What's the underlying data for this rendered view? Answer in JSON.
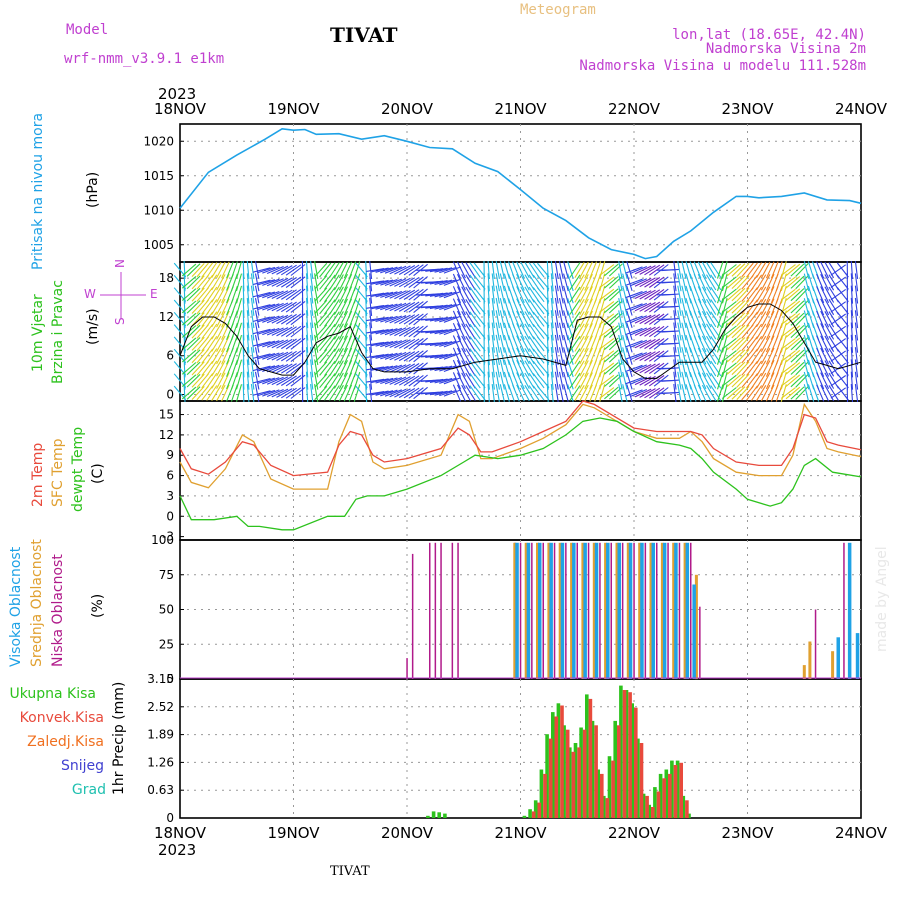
{
  "header": {
    "model_label": "Model",
    "model_name": "wrf-nmm_v3.9.1 e1km",
    "title": "TIVAT",
    "meteogram": "Meteogram",
    "lonlat": "lon,lat (18.65E, 42.4N)",
    "alt": "Nadmorska Visina 2m",
    "model_alt": "Nadmorska Visina u modelu 111.528m",
    "footer": "TIVAT",
    "credit": "made by Angel"
  },
  "time_axis": {
    "year": "2023",
    "ticks": [
      "18NOV",
      "19NOV",
      "20NOV",
      "21NOV",
      "22NOV",
      "23NOV",
      "24NOV"
    ]
  },
  "colors": {
    "pressure": "#1fa2e6",
    "t2m": "#e84a3c",
    "sfc": "#e0a030",
    "dew": "#2dc21d",
    "cloud_high": "#1fa2e6",
    "cloud_mid": "#e0a030",
    "cloud_low": "#b01a8a",
    "precip_total": "#2dc21d",
    "precip_conv": "#e84a3c",
    "precip_frz": "#f07020",
    "precip_snow": "#4040d0",
    "precip_grad": "#20c0b0",
    "violet": "#c040d0"
  },
  "panels": {
    "pressure": {
      "label1": "Pritisak na nivou mora",
      "unit": "(hPa)",
      "ticks": [
        "1020",
        "1015",
        "1010",
        "1005"
      ]
    },
    "wind": {
      "label1": "10m Vjetar",
      "label2": "Brzina i Pravac",
      "unit": "(m/s)",
      "ticks": [
        "18",
        "12",
        "6",
        "0"
      ],
      "compass_n": "N",
      "compass_s": "S",
      "compass_w": "W",
      "compass_e": "E"
    },
    "temp": {
      "label1": "2m Temp",
      "label2": "SFC Temp",
      "label3": "dewpt Temp",
      "unit": "(C)",
      "ticks": [
        "15",
        "12",
        "9",
        "6",
        "3",
        "0",
        "-3"
      ]
    },
    "cloud": {
      "label1": "Visoka Oblacnost",
      "label2": "Srednja Oblacnost",
      "label3": "Niska Oblacnost",
      "unit": "(%)",
      "ticks": [
        "100",
        "75",
        "50",
        "25",
        "0"
      ]
    },
    "precip": {
      "labels": [
        "Ukupna Kisa",
        "Konvek.Kisa",
        "Zaledj.Kisa",
        "Snijeg",
        "Grad"
      ],
      "unit": "1hr Precip (mm)",
      "ticks": [
        "3.15",
        "2.52",
        "1.89",
        "1.26",
        "0.63",
        "0"
      ]
    }
  },
  "chart_data": [
    {
      "type": "line",
      "panel": "pressure",
      "ylabel": "(hPa)",
      "ylim": [
        1002.5,
        1022.5
      ],
      "x_unit": "days since 18NOV 00Z",
      "series": [
        {
          "name": "Pritisak na nivou mora",
          "x": [
            0,
            0.25,
            0.5,
            0.75,
            0.9,
            1.0,
            1.1,
            1.2,
            1.4,
            1.6,
            1.8,
            2.0,
            2.2,
            2.4,
            2.6,
            2.8,
            3.0,
            3.2,
            3.4,
            3.6,
            3.8,
            4.0,
            4.1,
            4.2,
            4.35,
            4.5,
            4.7,
            4.9,
            5.0,
            5.1,
            5.3,
            5.5,
            5.7,
            5.9,
            6.0
          ],
          "y": [
            1010.3,
            1015.5,
            1018.0,
            1020.3,
            1021.8,
            1021.6,
            1021.7,
            1021.0,
            1021.1,
            1020.3,
            1020.8,
            1020.0,
            1019.1,
            1018.9,
            1016.8,
            1015.6,
            1013.0,
            1010.3,
            1008.5,
            1006.0,
            1004.3,
            1003.6,
            1003.0,
            1003.3,
            1005.5,
            1007.0,
            1009.7,
            1012.0,
            1012.0,
            1011.8,
            1012.0,
            1012.5,
            1011.5,
            1011.4,
            1011.0
          ]
        }
      ]
    },
    {
      "type": "line",
      "panel": "wind",
      "ylabel": "(m/s)",
      "ylim": [
        -1,
        20.5
      ],
      "x_unit": "days since 18NOV 00Z",
      "series": [
        {
          "name": "wind speed",
          "x": [
            0,
            0.1,
            0.2,
            0.3,
            0.4,
            0.5,
            0.6,
            0.7,
            0.8,
            0.9,
            1.0,
            1.1,
            1.2,
            1.3,
            1.4,
            1.5,
            1.6,
            1.7,
            1.8,
            2.0,
            2.2,
            2.4,
            2.6,
            2.8,
            3.0,
            3.2,
            3.4,
            3.5,
            3.6,
            3.7,
            3.8,
            3.9,
            4.0,
            4.1,
            4.2,
            4.4,
            4.6,
            4.7,
            4.8,
            4.9,
            5.0,
            5.1,
            5.2,
            5.3,
            5.4,
            5.5,
            5.6,
            5.7,
            5.8,
            6.0
          ],
          "y": [
            6,
            10.5,
            12,
            12,
            11,
            9,
            6,
            4,
            3.5,
            3,
            3,
            5,
            8,
            9,
            9.5,
            10.5,
            6.5,
            4,
            3.5,
            3.5,
            4,
            4,
            5,
            5.5,
            6,
            5.5,
            4.5,
            11.5,
            12,
            12,
            10.5,
            5.5,
            3.5,
            2.5,
            2.5,
            5,
            5,
            7,
            10,
            12,
            13.5,
            14,
            14,
            13,
            11,
            8,
            5,
            4.5,
            4,
            5
          ]
        }
      ]
    },
    {
      "type": "line",
      "panel": "temp",
      "ylabel": "(C)",
      "ylim": [
        -3.5,
        17
      ],
      "x_unit": "days since 18NOV 00Z",
      "series": [
        {
          "name": "2m Temp",
          "x": [
            0,
            0.1,
            0.25,
            0.4,
            0.55,
            0.65,
            0.8,
            1.0,
            1.3,
            1.4,
            1.5,
            1.6,
            1.7,
            1.8,
            2.0,
            2.3,
            2.45,
            2.55,
            2.65,
            2.75,
            3.0,
            3.2,
            3.4,
            3.55,
            3.65,
            3.8,
            4.0,
            4.2,
            4.4,
            4.5,
            4.6,
            4.7,
            4.9,
            5.1,
            5.3,
            5.4,
            5.5,
            5.6,
            5.7,
            5.8,
            6.0
          ],
          "y": [
            10,
            7,
            6.2,
            8,
            11,
            10.5,
            7.5,
            6,
            6.5,
            10.5,
            12.5,
            12,
            9,
            8,
            8.5,
            10,
            13,
            12,
            9.5,
            9.5,
            11,
            12.5,
            14,
            17,
            16.5,
            15,
            13,
            12.5,
            12.5,
            12.5,
            12,
            10,
            8,
            7.5,
            7.5,
            10,
            15,
            14.5,
            11,
            10.5,
            9.8
          ]
        },
        {
          "name": "SFC Temp",
          "x": [
            0,
            0.1,
            0.25,
            0.4,
            0.55,
            0.65,
            0.8,
            1.0,
            1.3,
            1.4,
            1.5,
            1.6,
            1.7,
            1.8,
            2.0,
            2.3,
            2.45,
            2.55,
            2.65,
            2.75,
            3.0,
            3.2,
            3.4,
            3.55,
            3.65,
            3.8,
            4.0,
            4.2,
            4.4,
            4.5,
            4.6,
            4.7,
            4.9,
            5.1,
            5.3,
            5.4,
            5.5,
            5.6,
            5.7,
            5.8,
            6.0
          ],
          "y": [
            8,
            5,
            4.2,
            7,
            12,
            11,
            5.5,
            4,
            4,
            11,
            15,
            14,
            8,
            7,
            7.5,
            9,
            15,
            14,
            8.5,
            8.5,
            10,
            11.5,
            13.5,
            16.5,
            16,
            14.5,
            12.5,
            11.5,
            11.5,
            12.5,
            11,
            8.5,
            6.5,
            6,
            6,
            9,
            16.5,
            14,
            10,
            9.5,
            8.8
          ]
        },
        {
          "name": "dewpt Temp",
          "x": [
            0,
            0.1,
            0.3,
            0.5,
            0.6,
            0.7,
            0.9,
            1.0,
            1.3,
            1.45,
            1.55,
            1.65,
            1.8,
            2.0,
            2.3,
            2.5,
            2.6,
            2.8,
            3.0,
            3.2,
            3.4,
            3.55,
            3.7,
            3.85,
            4.0,
            4.2,
            4.4,
            4.5,
            4.6,
            4.7,
            4.9,
            5.0,
            5.2,
            5.3,
            5.4,
            5.5,
            5.6,
            5.75,
            6.0
          ],
          "y": [
            3,
            -0.5,
            -0.5,
            0,
            -1.5,
            -1.5,
            -2,
            -2,
            0,
            0,
            2.5,
            3,
            3,
            4,
            6,
            8,
            9,
            8.5,
            9,
            10,
            12,
            14,
            14.5,
            14,
            12.5,
            11,
            10.5,
            10,
            8.5,
            6.5,
            4,
            2.5,
            1.5,
            2,
            4,
            7.5,
            8.5,
            6.5,
            5.8
          ]
        }
      ]
    },
    {
      "type": "bar",
      "panel": "cloud",
      "ylabel": "(%)",
      "ylim": [
        0,
        100
      ],
      "x_unit": "days since 18NOV 00Z",
      "series": [
        {
          "name": "Niska Oblacnost",
          "x": [
            2.0,
            2.05,
            2.2,
            2.25,
            2.3,
            2.4,
            2.45,
            2.95,
            3.0,
            3.1,
            3.2,
            3.3,
            3.4,
            3.5,
            3.6,
            3.7,
            3.8,
            3.9,
            4.0,
            4.1,
            4.2,
            4.3,
            4.4,
            4.5,
            4.58,
            5.6,
            5.85
          ],
          "y": [
            15,
            90,
            98,
            98,
            98,
            98,
            98,
            98,
            98,
            98,
            98,
            98,
            98,
            98,
            98,
            98,
            98,
            98,
            98,
            98,
            98,
            98,
            98,
            98,
            52,
            50,
            98
          ]
        },
        {
          "name": "Srednja Oblacnost",
          "x": [
            2.95,
            3.05,
            3.15,
            3.25,
            3.35,
            3.45,
            3.55,
            3.65,
            3.75,
            3.85,
            3.95,
            4.05,
            4.15,
            4.25,
            4.35,
            4.45,
            4.55,
            5.5,
            5.55,
            5.75
          ],
          "y": [
            98,
            98,
            98,
            98,
            98,
            98,
            98,
            98,
            98,
            98,
            98,
            98,
            98,
            98,
            98,
            98,
            75,
            10,
            27,
            20
          ]
        },
        {
          "name": "Visoka Oblacnost",
          "x": [
            2.97,
            3.07,
            3.17,
            3.27,
            3.37,
            3.47,
            3.57,
            3.67,
            3.77,
            3.87,
            3.97,
            4.07,
            4.17,
            4.27,
            4.37,
            4.47,
            4.53,
            5.8,
            5.9,
            5.97
          ],
          "y": [
            98,
            98,
            98,
            98,
            98,
            98,
            98,
            98,
            98,
            98,
            98,
            98,
            98,
            98,
            98,
            98,
            68,
            30,
            98,
            33
          ]
        }
      ]
    },
    {
      "type": "bar",
      "panel": "precip",
      "ylabel": "1hr Precip (mm)",
      "ylim": [
        0,
        3.15
      ],
      "x_unit": "days since 18NOV 00Z",
      "series": [
        {
          "name": "Ukupna Kisa",
          "x": [
            2.2,
            2.25,
            2.3,
            2.35,
            3.05,
            3.1,
            3.15,
            3.2,
            3.25,
            3.3,
            3.35,
            3.4,
            3.45,
            3.5,
            3.55,
            3.6,
            3.65,
            3.7,
            3.75,
            3.8,
            3.85,
            3.9,
            3.95,
            4.0,
            4.05,
            4.1,
            4.15,
            4.2,
            4.25,
            4.3,
            4.35,
            4.4,
            4.45,
            4.5
          ],
          "y": [
            0.05,
            0.15,
            0.13,
            0.1,
            0.05,
            0.2,
            0.4,
            1.1,
            1.9,
            2.4,
            2.6,
            2.1,
            1.6,
            1.7,
            2.05,
            2.8,
            2.2,
            1.1,
            0.5,
            1.4,
            2.2,
            3.0,
            2.9,
            2.6,
            1.8,
            0.55,
            0.3,
            0.7,
            1.0,
            1.1,
            1.3,
            1.3,
            0.5,
            0.1
          ]
        },
        {
          "name": "Konvek.Kisa",
          "x": [
            3.1,
            3.15,
            3.2,
            3.25,
            3.3,
            3.35,
            3.4,
            3.45,
            3.5,
            3.55,
            3.6,
            3.65,
            3.7,
            3.75,
            3.8,
            3.85,
            3.9,
            3.95,
            4.0,
            4.05,
            4.1,
            4.15,
            4.2,
            4.25,
            4.3,
            4.35,
            4.4,
            4.45
          ],
          "y": [
            0.15,
            0.35,
            1.0,
            1.8,
            2.3,
            2.55,
            2.0,
            1.5,
            1.6,
            2.0,
            2.7,
            2.1,
            1.0,
            0.45,
            1.3,
            2.1,
            2.9,
            2.85,
            2.5,
            1.7,
            0.5,
            0.25,
            0.6,
            0.9,
            1.0,
            1.2,
            1.25,
            0.4
          ]
        }
      ]
    }
  ]
}
